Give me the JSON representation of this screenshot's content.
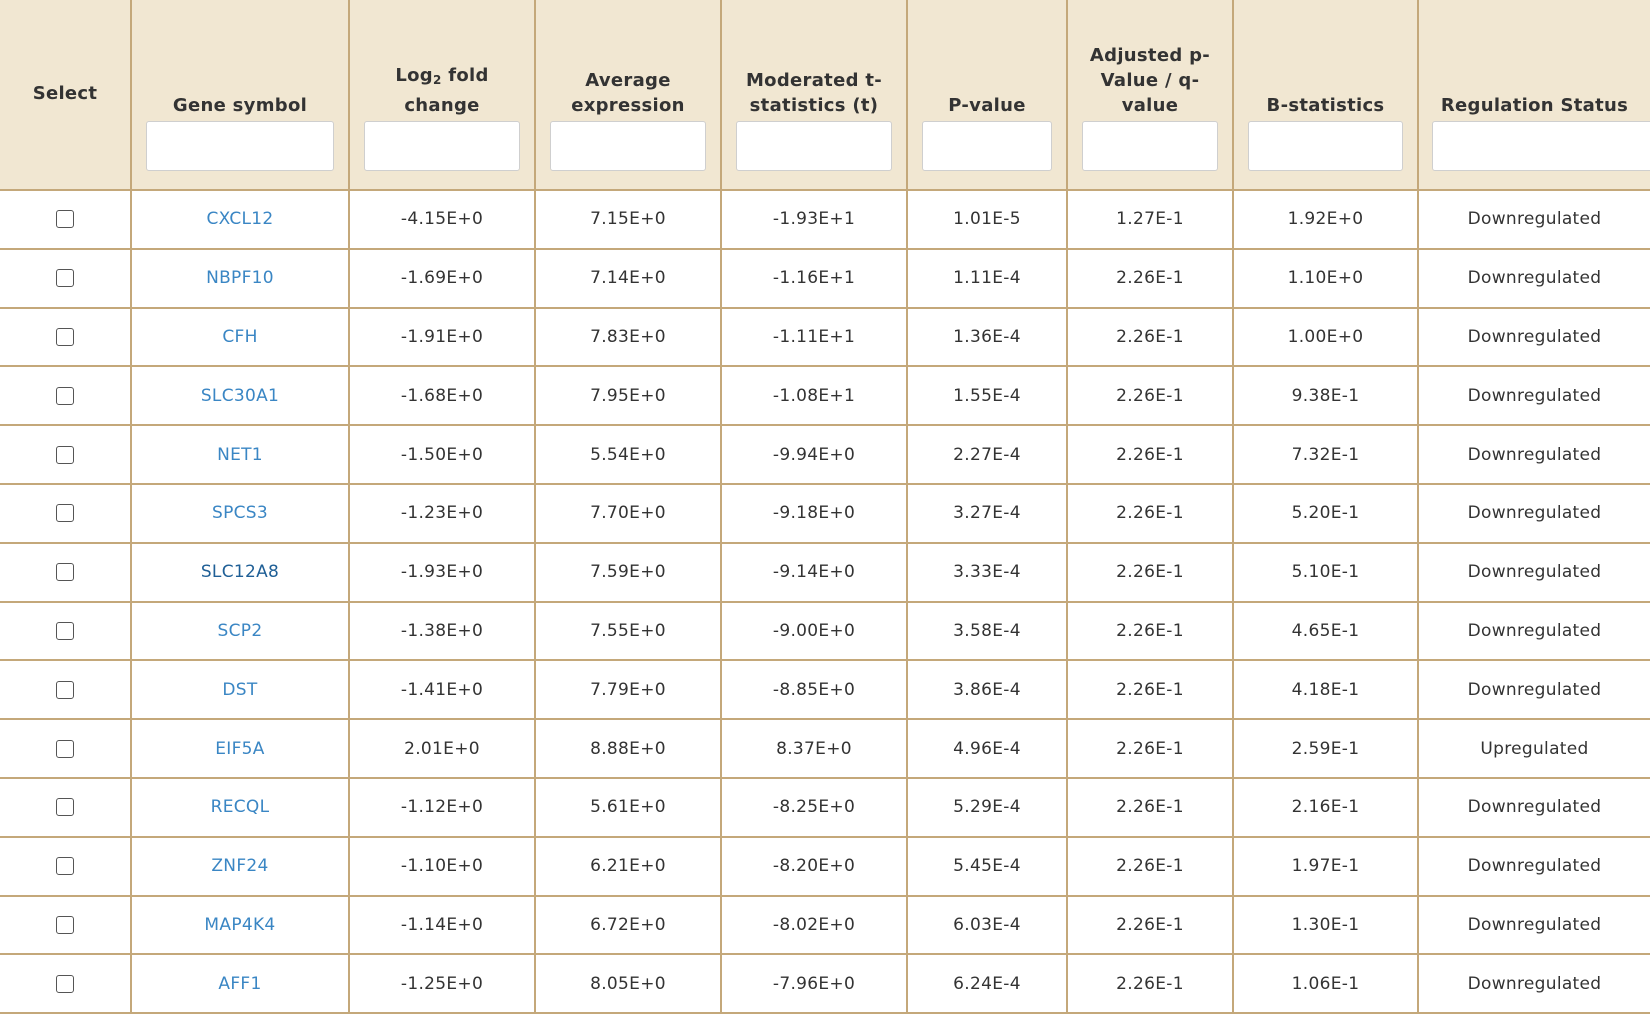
{
  "headers": {
    "select": "Select",
    "gene_symbol": "Gene symbol",
    "log2_prefix": "Log",
    "log2_sub": "2",
    "log2_suffix": " fold change",
    "average_expression": "Average expression",
    "moderated_t": "Moderated t-statistics (t)",
    "p_value": "P-value",
    "adjusted_p": "Adjusted p-Value / q-value",
    "b_statistics": "B-statistics",
    "regulation_status": "Regulation Status"
  },
  "rows": [
    {
      "gene": "CXCL12",
      "log2fc": "-4.15E+0",
      "avg": "7.15E+0",
      "t": "-1.93E+1",
      "p": "1.01E-5",
      "q": "1.27E-1",
      "b": "1.92E+0",
      "status": "Downregulated"
    },
    {
      "gene": "NBPF10",
      "log2fc": "-1.69E+0",
      "avg": "7.14E+0",
      "t": "-1.16E+1",
      "p": "1.11E-4",
      "q": "2.26E-1",
      "b": "1.10E+0",
      "status": "Downregulated"
    },
    {
      "gene": "CFH",
      "log2fc": "-1.91E+0",
      "avg": "7.83E+0",
      "t": "-1.11E+1",
      "p": "1.36E-4",
      "q": "2.26E-1",
      "b": "1.00E+0",
      "status": "Downregulated"
    },
    {
      "gene": "SLC30A1",
      "log2fc": "-1.68E+0",
      "avg": "7.95E+0",
      "t": "-1.08E+1",
      "p": "1.55E-4",
      "q": "2.26E-1",
      "b": "9.38E-1",
      "status": "Downregulated"
    },
    {
      "gene": "NET1",
      "log2fc": "-1.50E+0",
      "avg": "5.54E+0",
      "t": "-9.94E+0",
      "p": "2.27E-4",
      "q": "2.26E-1",
      "b": "7.32E-1",
      "status": "Downregulated"
    },
    {
      "gene": "SPCS3",
      "log2fc": "-1.23E+0",
      "avg": "7.70E+0",
      "t": "-9.18E+0",
      "p": "3.27E-4",
      "q": "2.26E-1",
      "b": "5.20E-1",
      "status": "Downregulated"
    },
    {
      "gene": "SLC12A8",
      "log2fc": "-1.93E+0",
      "avg": "7.59E+0",
      "t": "-9.14E+0",
      "p": "3.33E-4",
      "q": "2.26E-1",
      "b": "5.10E-1",
      "status": "Downregulated"
    },
    {
      "gene": "SCP2",
      "log2fc": "-1.38E+0",
      "avg": "7.55E+0",
      "t": "-9.00E+0",
      "p": "3.58E-4",
      "q": "2.26E-1",
      "b": "4.65E-1",
      "status": "Downregulated"
    },
    {
      "gene": "DST",
      "log2fc": "-1.41E+0",
      "avg": "7.79E+0",
      "t": "-8.85E+0",
      "p": "3.86E-4",
      "q": "2.26E-1",
      "b": "4.18E-1",
      "status": "Downregulated"
    },
    {
      "gene": "EIF5A",
      "log2fc": "2.01E+0",
      "avg": "8.88E+0",
      "t": "8.37E+0",
      "p": "4.96E-4",
      "q": "2.26E-1",
      "b": "2.59E-1",
      "status": "Upregulated"
    },
    {
      "gene": "RECQL",
      "log2fc": "-1.12E+0",
      "avg": "5.61E+0",
      "t": "-8.25E+0",
      "p": "5.29E-4",
      "q": "2.26E-1",
      "b": "2.16E-1",
      "status": "Downregulated"
    },
    {
      "gene": "ZNF24",
      "log2fc": "-1.10E+0",
      "avg": "6.21E+0",
      "t": "-8.20E+0",
      "p": "5.45E-4",
      "q": "2.26E-1",
      "b": "1.97E-1",
      "status": "Downregulated"
    },
    {
      "gene": "MAP4K4",
      "log2fc": "-1.14E+0",
      "avg": "6.72E+0",
      "t": "-8.02E+0",
      "p": "6.03E-4",
      "q": "2.26E-1",
      "b": "1.30E-1",
      "status": "Downregulated"
    },
    {
      "gene": "AFF1",
      "log2fc": "-1.25E+0",
      "avg": "8.05E+0",
      "t": "-7.96E+0",
      "p": "6.24E-4",
      "q": "2.26E-1",
      "b": "1.06E-1",
      "status": "Downregulated"
    }
  ],
  "colors": {
    "header_bg": "#f1e7d2",
    "border": "#c4a87a",
    "link": "#3a86c4"
  }
}
